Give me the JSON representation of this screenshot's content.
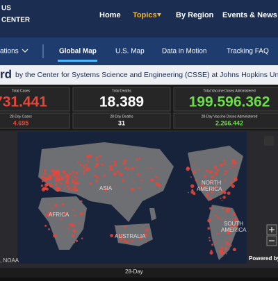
{
  "header": {
    "logo": [
      "US",
      "CENTER"
    ],
    "nav": [
      "Home",
      "Topics",
      "By Region",
      "Events & News"
    ]
  },
  "subnav": {
    "items": [
      "ations",
      "Global Map",
      "U.S. Map",
      "Data in Motion",
      "Tracking FAQ"
    ]
  },
  "title": {
    "bold": "rd",
    "text": "by the Center for Systems Science and Engineering (CSSE) at Johns Hopkins Univ"
  },
  "stats": [
    {
      "label": "Total Cases",
      "value": "731.441",
      "sub_label": "28-Day Cases",
      "sub_value": "4.695"
    },
    {
      "label": "Total Deaths",
      "value": "18.389",
      "sub_label": "28-Day Deaths",
      "sub_value": "31"
    },
    {
      "label": "Total Vaccine Doses Administered",
      "value": "199.596.362",
      "sub_label": "28-Day Vaccine Doses Administered",
      "sub_value": "2.266.442"
    }
  ],
  "map": {
    "labels": [
      "ASIA",
      "AFRICA",
      "AUSTRALIA",
      "NORTH",
      "AMERICA",
      "SOUTH",
      "AMERICA"
    ],
    "credit": ", NOAA",
    "powered": "Powered by"
  },
  "footer": {
    "tab": "28-Day"
  }
}
